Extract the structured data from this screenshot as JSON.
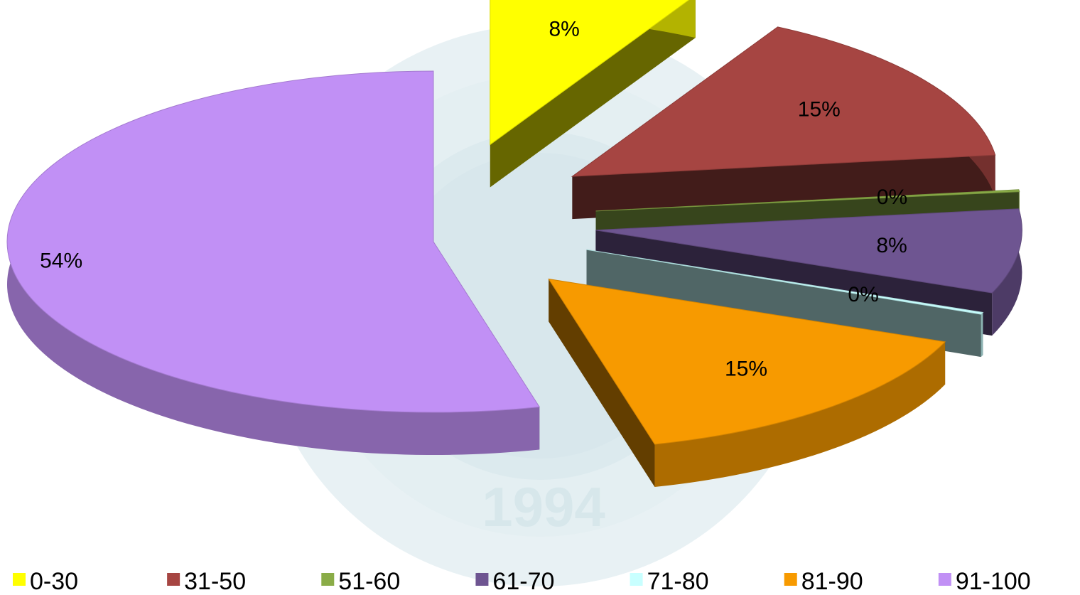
{
  "chart_data": {
    "type": "pie",
    "style": "3d-exploded",
    "categories": [
      "0-30",
      "31-50",
      "51-60",
      "61-70",
      "71-80",
      "81-90",
      "91-100"
    ],
    "values": [
      8,
      15,
      0,
      8,
      0,
      15,
      54
    ],
    "labels": [
      "8%",
      "15%",
      "0%",
      "8%",
      "0%",
      "15%",
      "54%"
    ],
    "colors": [
      "#ffff00",
      "#a64542",
      "#8aac47",
      "#6e5591",
      "#c8ffff",
      "#f79a00",
      "#c190f5"
    ],
    "legend_position": "bottom"
  },
  "watermark": {
    "year": "1994"
  }
}
